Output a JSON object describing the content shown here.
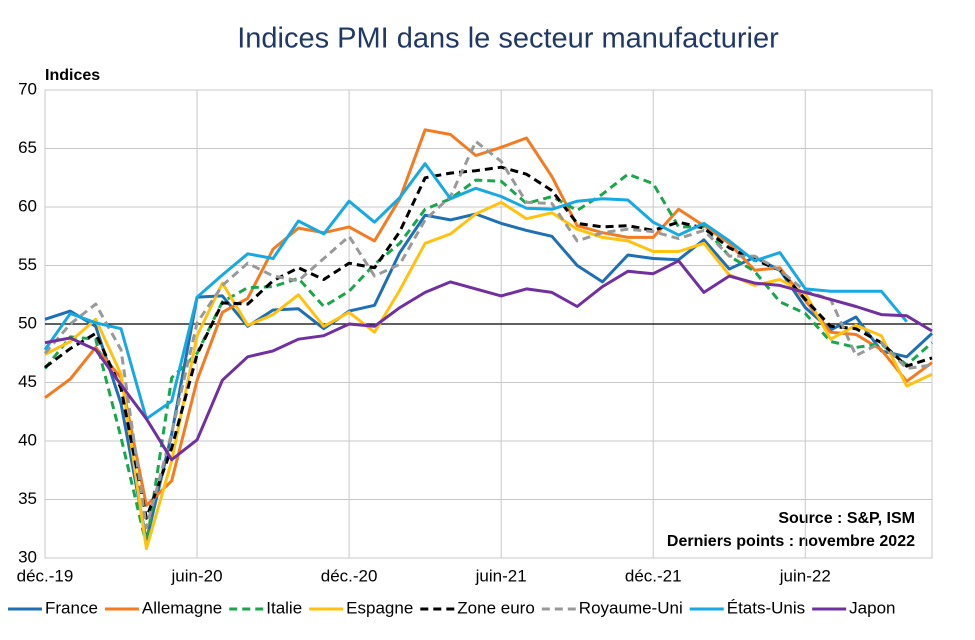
{
  "chart_data": {
    "type": "line",
    "title": "Indices PMI dans le secteur manufacturier",
    "y_label": "Indices",
    "annotations": [
      "Source : S&P, ISM",
      "Derniers points : novembre 2022"
    ],
    "categories": [
      "déc.-19",
      null,
      null,
      null,
      null,
      null,
      "juin-20",
      null,
      null,
      null,
      null,
      null,
      "déc.-20",
      null,
      null,
      null,
      null,
      null,
      "juin-21",
      null,
      null,
      null,
      null,
      null,
      "déc.-21",
      null,
      null,
      null,
      null,
      null,
      "juin-22",
      null,
      null,
      null,
      null,
      null
    ],
    "ylim": [
      30,
      70
    ],
    "yticks": [
      30,
      35,
      40,
      45,
      50,
      55,
      60,
      65,
      70
    ],
    "reference_line": 50,
    "grid": true,
    "legend": "bottom",
    "series": [
      {
        "name": "France",
        "color": "#1f6fb5",
        "dashed": false,
        "values": [
          50.4,
          51.1,
          49.8,
          43.2,
          31.5,
          40.6,
          52.3,
          52.4,
          49.8,
          51.2,
          51.3,
          49.6,
          51.1,
          51.6,
          56.1,
          59.3,
          58.9,
          59.4,
          58.6,
          58.0,
          57.5,
          55.0,
          53.6,
          55.9,
          55.6,
          55.5,
          57.2,
          54.7,
          55.7,
          54.6,
          51.4,
          49.5,
          50.6,
          47.7,
          47.2,
          49.2
        ]
      },
      {
        "name": "Allemagne",
        "color": "#f47b20",
        "dashed": false,
        "values": [
          43.7,
          45.3,
          48.0,
          45.4,
          34.5,
          36.6,
          45.2,
          51.0,
          52.2,
          56.4,
          58.2,
          57.8,
          58.3,
          57.1,
          60.7,
          66.6,
          66.2,
          64.4,
          65.1,
          65.9,
          62.6,
          58.4,
          57.8,
          57.4,
          57.4,
          59.8,
          58.4,
          56.9,
          54.6,
          54.8,
          52.0,
          49.3,
          49.1,
          47.8,
          45.1,
          46.7
        ]
      },
      {
        "name": "Italie",
        "color": "#1aa64b",
        "dashed": true,
        "values": [
          46.2,
          48.9,
          48.7,
          40.3,
          31.1,
          45.4,
          47.5,
          51.9,
          53.1,
          53.2,
          53.9,
          51.5,
          52.8,
          55.1,
          56.9,
          59.8,
          60.7,
          62.3,
          62.2,
          60.3,
          60.9,
          59.7,
          61.1,
          62.8,
          62.0,
          58.3,
          58.3,
          55.8,
          54.5,
          51.9,
          50.9,
          48.5,
          48.0,
          48.3,
          46.5,
          48.4
        ]
      },
      {
        "name": "Espagne",
        "color": "#ffc20e",
        "dashed": false,
        "values": [
          47.4,
          48.5,
          50.4,
          45.7,
          30.8,
          38.3,
          49.0,
          53.5,
          49.9,
          50.8,
          52.5,
          49.8,
          51.0,
          49.3,
          52.9,
          56.9,
          57.7,
          59.4,
          60.4,
          59.0,
          59.5,
          58.1,
          57.4,
          57.1,
          56.2,
          56.2,
          56.9,
          54.2,
          53.3,
          53.8,
          52.6,
          48.7,
          49.9,
          49.0,
          44.7,
          45.7
        ]
      },
      {
        "name": "Zone euro",
        "color": "#000000",
        "dashed": true,
        "values": [
          46.3,
          47.9,
          49.2,
          44.5,
          33.4,
          39.4,
          47.4,
          51.8,
          51.7,
          53.7,
          54.8,
          53.8,
          55.2,
          54.8,
          57.9,
          62.5,
          62.9,
          63.1,
          63.4,
          62.8,
          61.4,
          58.6,
          58.3,
          58.4,
          58.0,
          58.7,
          58.2,
          56.5,
          55.5,
          54.6,
          52.1,
          49.8,
          49.6,
          48.4,
          46.4,
          47.1
        ]
      },
      {
        "name": "Royaume-Uni",
        "color": "#999999",
        "dashed": true,
        "values": [
          47.5,
          50.0,
          51.7,
          47.8,
          32.6,
          40.7,
          50.1,
          53.3,
          55.2,
          54.1,
          53.7,
          55.6,
          57.5,
          54.1,
          55.1,
          58.9,
          60.9,
          65.6,
          63.9,
          60.4,
          60.3,
          57.1,
          57.8,
          58.1,
          57.9,
          57.3,
          58.0,
          55.8,
          55.8,
          54.6,
          52.8,
          52.1,
          47.3,
          48.4,
          46.2,
          46.5
        ]
      },
      {
        "name": "États-Unis",
        "color": "#17a9e1",
        "dashed": false,
        "values": [
          47.8,
          50.9,
          50.1,
          49.6,
          41.9,
          43.4,
          52.3,
          54.2,
          56.0,
          55.6,
          58.8,
          57.7,
          60.5,
          58.7,
          60.8,
          63.7,
          60.7,
          61.6,
          60.9,
          59.9,
          59.8,
          60.5,
          60.7,
          60.6,
          58.7,
          57.6,
          58.6,
          57.1,
          55.4,
          56.1,
          53.0,
          52.8,
          52.8,
          52.8,
          50.2,
          null
        ]
      },
      {
        "name": "Japon",
        "color": "#7030a0",
        "dashed": false,
        "values": [
          48.4,
          48.8,
          47.8,
          44.8,
          41.9,
          38.4,
          40.1,
          45.2,
          47.2,
          47.7,
          48.7,
          49.0,
          50.0,
          49.8,
          51.4,
          52.7,
          53.6,
          53.0,
          52.4,
          53.0,
          52.7,
          51.5,
          53.2,
          54.5,
          54.3,
          55.4,
          52.7,
          54.1,
          53.5,
          53.3,
          52.7,
          52.1,
          51.5,
          50.8,
          50.7,
          49.4
        ]
      }
    ]
  }
}
